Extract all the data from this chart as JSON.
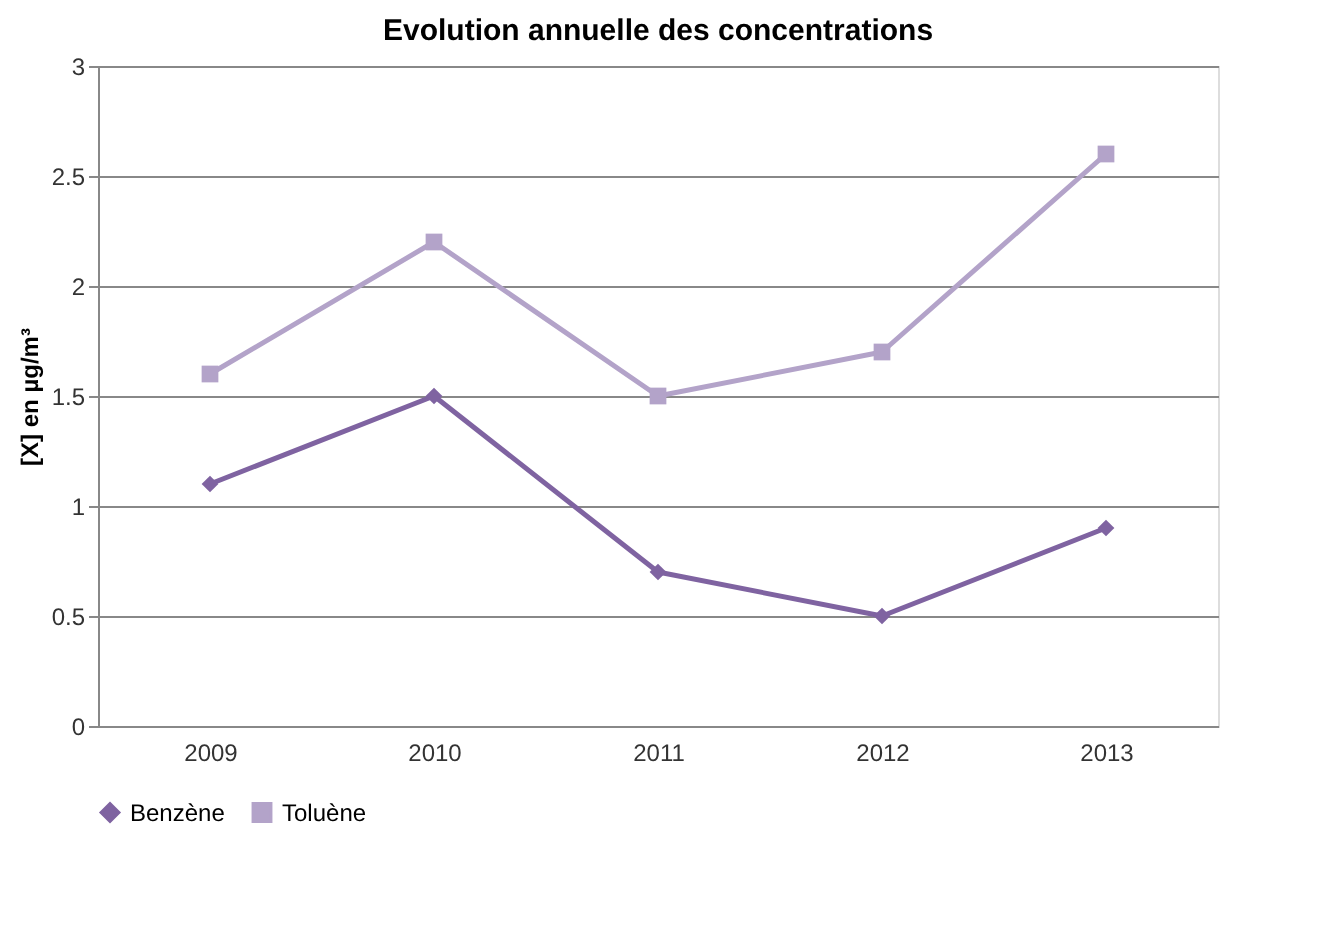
{
  "chart_data": {
    "type": "line",
    "title": "Evolution annuelle des concentrations",
    "ylabel": "[X] en µg/m³",
    "categories": [
      "2009",
      "2010",
      "2011",
      "2012",
      "2013"
    ],
    "series": [
      {
        "name": "Benzène",
        "color": "#7f63a1",
        "marker": "diamond",
        "values": [
          1.1,
          1.5,
          0.7,
          0.5,
          0.9
        ]
      },
      {
        "name": "Toluène",
        "color": "#b3a3c9",
        "marker": "square",
        "values": [
          1.6,
          2.2,
          1.5,
          1.7,
          2.6
        ]
      }
    ],
    "ylim": [
      0,
      3
    ],
    "yticks": [
      0,
      0.5,
      1,
      1.5,
      2,
      2.5,
      3
    ],
    "grid": "y",
    "legend": "bottom"
  }
}
